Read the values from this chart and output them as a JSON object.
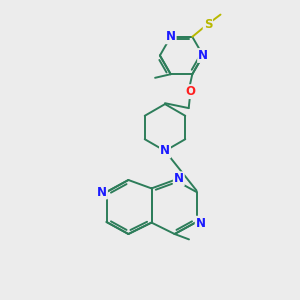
{
  "background_color": "#ececec",
  "bond_color": "#2d7d5a",
  "atom_colors": {
    "N": "#1a1aff",
    "O": "#ff2020",
    "S": "#b8b800",
    "C": "#2d7d5a"
  },
  "figsize": [
    3.0,
    3.0
  ],
  "dpi": 100,
  "lw": 1.4,
  "fs": 8.5
}
